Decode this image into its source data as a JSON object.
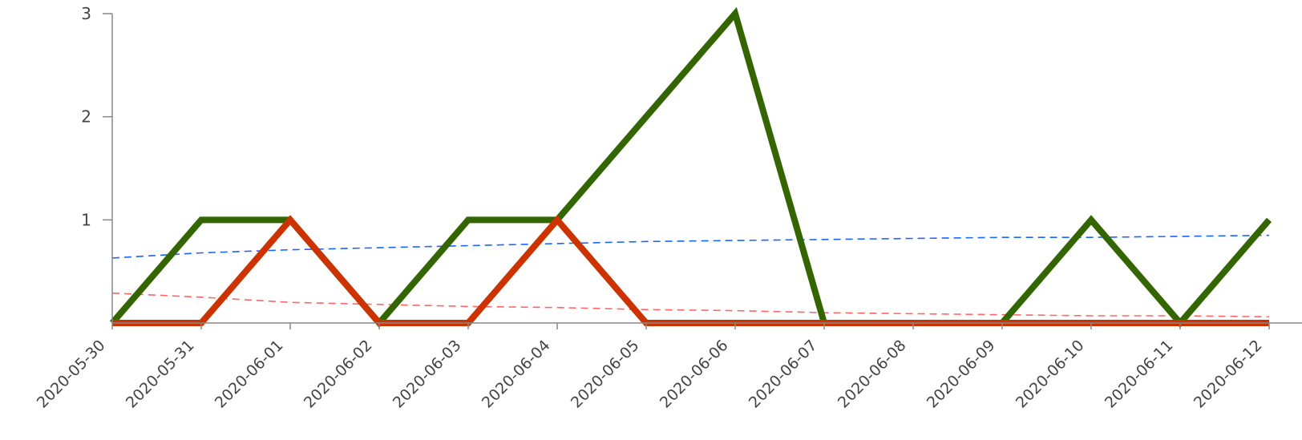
{
  "chart_data": {
    "type": "line",
    "title": "",
    "xlabel": "",
    "ylabel": "",
    "categories": [
      "2020-05-30",
      "2020-05-31",
      "2020-06-01",
      "2020-06-02",
      "2020-06-03",
      "2020-06-04",
      "2020-06-05",
      "2020-06-06",
      "2020-06-07",
      "2020-06-08",
      "2020-06-09",
      "2020-06-10",
      "2020-06-11",
      "2020-06-12"
    ],
    "ylim": [
      0,
      3
    ],
    "yticks": [
      1,
      2,
      3
    ],
    "grid": false,
    "legend": "none",
    "series": [
      {
        "color": "#336600",
        "style": "solid-thick",
        "values": [
          0,
          1,
          1,
          0,
          1,
          1,
          2,
          3,
          0,
          0,
          0,
          1,
          0,
          1
        ]
      },
      {
        "color": "#cc3300",
        "style": "solid-thick",
        "values": [
          0,
          0,
          1,
          0,
          0,
          1,
          0,
          0,
          0,
          0,
          0,
          0,
          0,
          0
        ]
      },
      {
        "color": "#1a66ff",
        "style": "dashed",
        "values": [
          0.63,
          0.68,
          0.71,
          0.73,
          0.75,
          0.77,
          0.79,
          0.8,
          0.81,
          0.82,
          0.83,
          0.83,
          0.84,
          0.85
        ]
      },
      {
        "color": "#ff6666",
        "style": "dashed",
        "values": [
          0.29,
          0.25,
          0.2,
          0.18,
          0.16,
          0.15,
          0.13,
          0.12,
          0.1,
          0.09,
          0.08,
          0.07,
          0.07,
          0.06
        ]
      }
    ]
  }
}
